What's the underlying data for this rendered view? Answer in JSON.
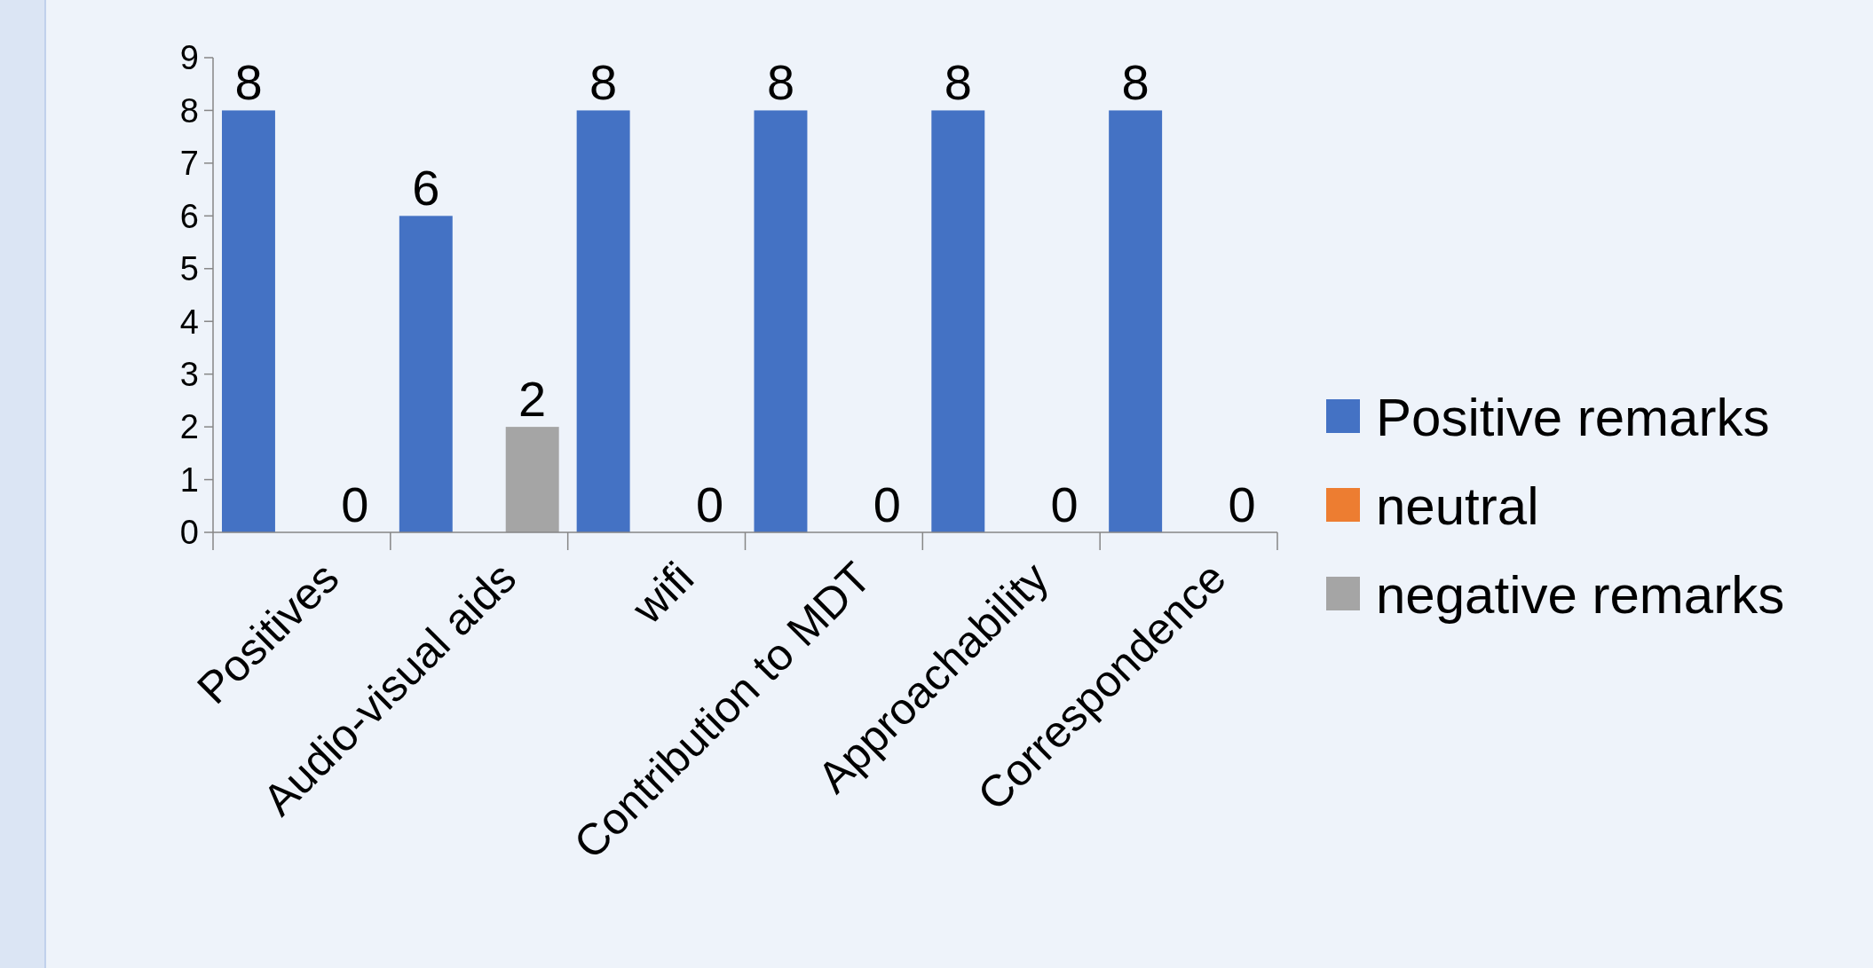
{
  "chart_data": {
    "type": "bar",
    "categories": [
      "Positives",
      "Audio-visual aids",
      "wifi",
      "Contribution to MDT",
      "Approachability",
      "Correspondence"
    ],
    "series": [
      {
        "name": "Positive remarks",
        "color": "#4472c4",
        "values": [
          8,
          6,
          8,
          8,
          8,
          8
        ]
      },
      {
        "name": "neutral",
        "color": "#ed7d31",
        "values": [
          null,
          null,
          null,
          null,
          null,
          null
        ]
      },
      {
        "name": "negative remarks",
        "color": "#a5a5a5",
        "values": [
          0,
          2,
          0,
          0,
          0,
          0
        ]
      }
    ],
    "ylim": [
      0,
      9
    ],
    "yticks": [
      0,
      1,
      2,
      3,
      4,
      5,
      6,
      7,
      8,
      9
    ],
    "data_labels": true,
    "legend": "right",
    "grid": false
  }
}
